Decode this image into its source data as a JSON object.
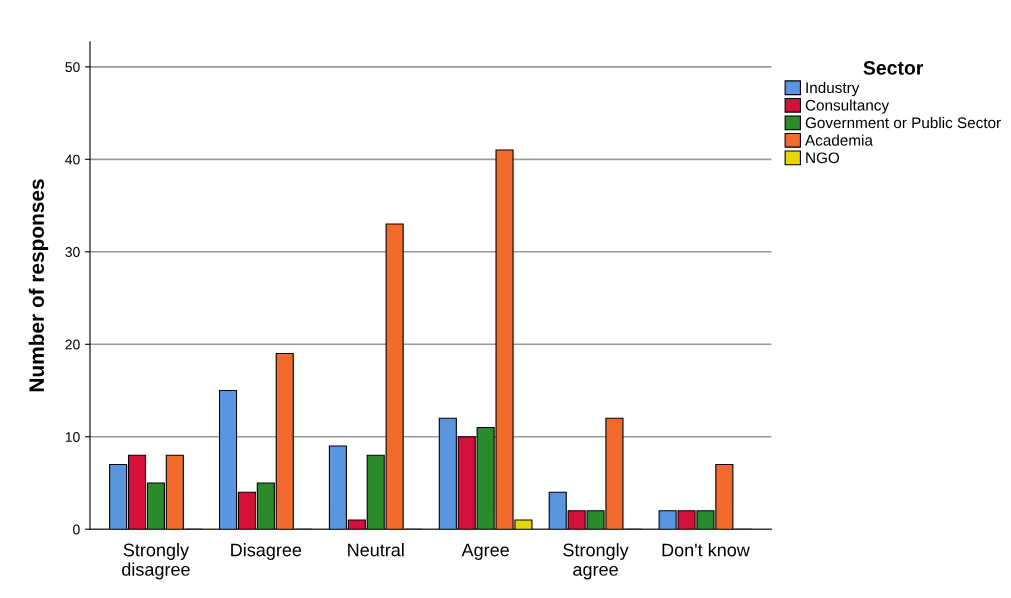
{
  "chart_data": {
    "type": "bar",
    "ylabel": "Number of responses",
    "legend_title": "Sector",
    "categories": [
      "Strongly\ndisagree",
      "Disagree",
      "Neutral",
      "Agree",
      "Strongly\nagree",
      "Don't know"
    ],
    "series": [
      {
        "name": "Industry",
        "color": "#5a96e0",
        "values": [
          7,
          15,
          9,
          12,
          4,
          2
        ]
      },
      {
        "name": "Consultancy",
        "color": "#d5103a",
        "values": [
          8,
          4,
          1,
          10,
          2,
          2
        ]
      },
      {
        "name": "Government or Public Sector",
        "color": "#2b8a2b",
        "values": [
          5,
          5,
          8,
          11,
          2,
          2
        ]
      },
      {
        "name": "Academia",
        "color": "#f26b2c",
        "values": [
          8,
          19,
          33,
          41,
          12,
          7
        ]
      },
      {
        "name": "NGO",
        "color": "#e6d60c",
        "values": [
          0,
          0,
          0,
          1,
          0,
          0
        ]
      }
    ],
    "ylim": [
      0,
      52.7
    ],
    "yticks": [
      0,
      10,
      20,
      30,
      40,
      50
    ],
    "grid": "y",
    "legend": "top right"
  }
}
